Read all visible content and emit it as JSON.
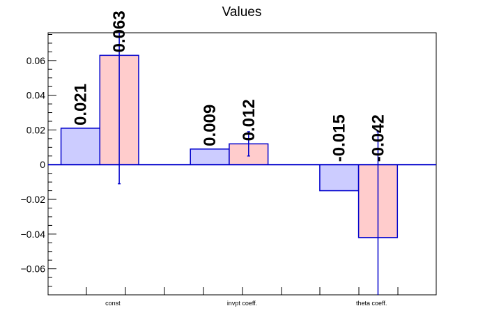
{
  "chart_data": {
    "type": "bar",
    "title": "Values",
    "categories": [
      "const",
      "invpt coeff.",
      "theta coeff."
    ],
    "series": [
      {
        "color": "#ccccff",
        "values": [
          0.021,
          0.009,
          -0.015
        ],
        "labels": [
          "0.021",
          "0.009",
          "-0.015"
        ],
        "errors": [
          0,
          0,
          0
        ]
      },
      {
        "color": "#ffcccc",
        "values": [
          0.063,
          0.012,
          -0.042
        ],
        "labels": [
          "0.063",
          "0.012",
          "-0.042"
        ],
        "errors": [
          0.074,
          0.007,
          0.061
        ]
      }
    ],
    "ylim": [
      -0.075,
      0.076
    ],
    "yticks": [
      -0.06,
      -0.04,
      -0.02,
      0,
      0.02,
      0.04,
      0.06
    ],
    "ytick_labels": [
      "−0.06",
      "−0.04",
      "−0.02",
      "0",
      "0.02",
      "0.04",
      "0.06"
    ],
    "bar_edge_color": "#0000cc",
    "zero_line": true,
    "grid": false,
    "legend": false
  }
}
